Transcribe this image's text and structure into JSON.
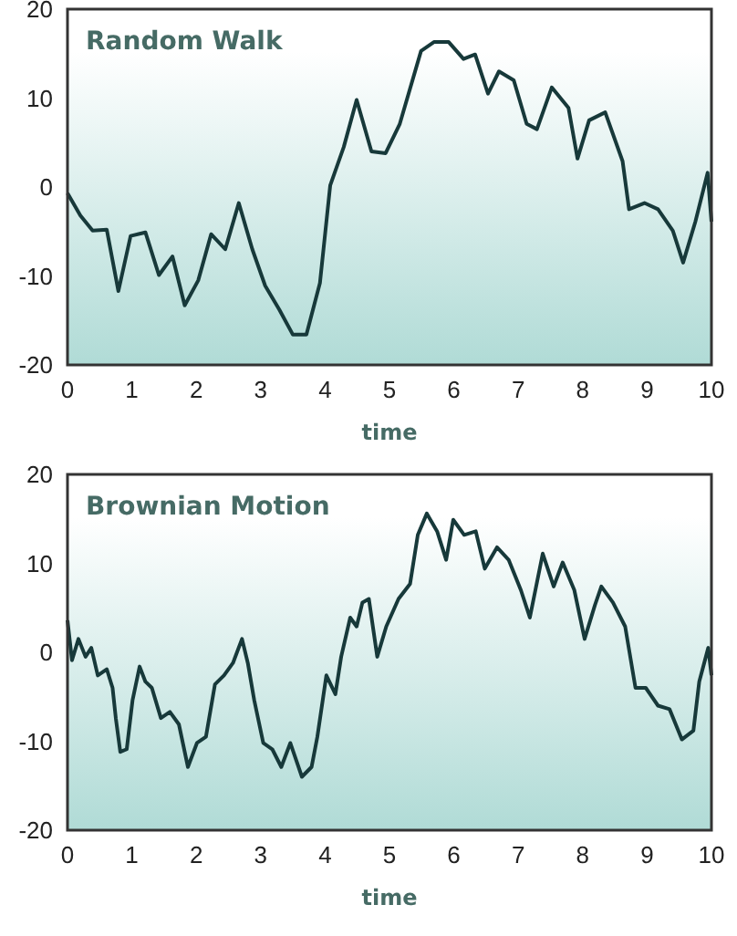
{
  "chart_data": [
    {
      "type": "line",
      "title": "Random Walk",
      "xlabel": "time",
      "xlim": [
        0,
        10
      ],
      "ylim": [
        -20,
        20
      ],
      "xticks": [
        0,
        1,
        2,
        3,
        4,
        5,
        6,
        7,
        8,
        9,
        10
      ],
      "yticks": [
        -20,
        -10,
        0,
        10,
        20
      ],
      "grid": false,
      "marker": "none",
      "line_style": "solid",
      "series": [
        {
          "color": "#17393a",
          "x": [
            0,
            0.2,
            0.39,
            0.61,
            0.79,
            0.98,
            1.21,
            1.42,
            1.63,
            1.82,
            2.03,
            2.23,
            2.45,
            2.66,
            2.87,
            3.07,
            3.29,
            3.5,
            3.71,
            3.92,
            4.08,
            4.29,
            4.49,
            4.72,
            4.94,
            5.16,
            5.49,
            5.69,
            5.92,
            6.15,
            6.33,
            6.53,
            6.7,
            6.93,
            7.13,
            7.29,
            7.52,
            7.78,
            7.92,
            8.1,
            8.35,
            8.62,
            8.72,
            8.96,
            9.17,
            9.4,
            9.56,
            9.75,
            9.94,
            10
          ],
          "values": [
            -0.7,
            -3.2,
            -4.9,
            -4.8,
            -11.7,
            -5.5,
            -5.1,
            -9.9,
            -7.8,
            -13.3,
            -10.5,
            -5.3,
            -7,
            -1.8,
            -7,
            -11.1,
            -13.8,
            -16.6,
            -16.6,
            -10.8,
            0.2,
            4.5,
            9.8,
            4,
            3.8,
            7.1,
            15.3,
            16.3,
            16.3,
            14.4,
            14.9,
            10.5,
            13,
            12,
            7.1,
            6.5,
            11.2,
            8.9,
            3.2,
            7.5,
            8.4,
            2.9,
            -2.5,
            -1.8,
            -2.5,
            -4.9,
            -8.5,
            -3.9,
            1.6,
            -3.9
          ]
        }
      ]
    },
    {
      "type": "line",
      "title": "Brownian Motion",
      "xlabel": "time",
      "xlim": [
        0,
        10
      ],
      "ylim": [
        -20,
        20
      ],
      "xticks": [
        0,
        1,
        2,
        3,
        4,
        5,
        6,
        7,
        8,
        9,
        10
      ],
      "yticks": [
        -20,
        -10,
        0,
        10,
        20
      ],
      "grid": false,
      "marker": "none",
      "line_style": "solid",
      "series": [
        {
          "color": "#17393a",
          "x": [
            0,
            0.07,
            0.17,
            0.28,
            0.37,
            0.47,
            0.61,
            0.7,
            0.75,
            0.82,
            0.92,
            1.01,
            1.12,
            1.21,
            1.31,
            1.45,
            1.59,
            1.73,
            1.87,
            2.01,
            2.15,
            2.29,
            2.43,
            2.57,
            2.71,
            2.8,
            2.9,
            3.04,
            3.18,
            3.32,
            3.46,
            3.64,
            3.79,
            3.88,
            4.02,
            4.16,
            4.25,
            4.39,
            4.49,
            4.58,
            4.68,
            4.81,
            4.95,
            5.14,
            5.32,
            5.44,
            5.58,
            5.74,
            5.88,
            5.99,
            6.16,
            6.34,
            6.48,
            6.67,
            6.85,
            7.04,
            7.18,
            7.38,
            7.55,
            7.69,
            7.87,
            8.03,
            8.19,
            8.29,
            8.47,
            8.66,
            8.82,
            8.98,
            9.17,
            9.35,
            9.54,
            9.72,
            9.81,
            9.95,
            10
          ],
          "values": [
            3.6,
            -0.9,
            1.5,
            -0.5,
            0.5,
            -2.6,
            -1.9,
            -4,
            -7.4,
            -11.2,
            -10.9,
            -5.4,
            -1.6,
            -3.3,
            -4,
            -7.4,
            -6.7,
            -8.1,
            -12.9,
            -10.2,
            -9.5,
            -3.6,
            -2.6,
            -1.2,
            1.5,
            -1.2,
            -5.4,
            -10.2,
            -10.9,
            -12.9,
            -10.2,
            -14,
            -12.9,
            -9.5,
            -2.6,
            -4.7,
            -0.5,
            3.9,
            2.9,
            5.6,
            6,
            -0.5,
            2.9,
            6,
            7.7,
            13.2,
            15.6,
            13.6,
            10.4,
            14.9,
            13.2,
            13.6,
            9.4,
            11.8,
            10.4,
            7,
            3.9,
            11.1,
            7.4,
            10.1,
            7,
            1.5,
            5.3,
            7.4,
            5.6,
            2.9,
            -4,
            -4,
            -6,
            -6.4,
            -9.8,
            -8.8,
            -3.3,
            0.5,
            -2.6
          ]
        }
      ]
    }
  ]
}
